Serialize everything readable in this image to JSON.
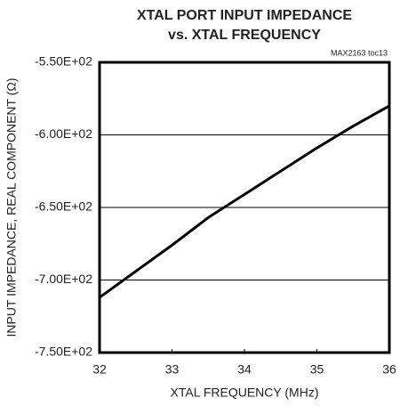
{
  "chart_data": {
    "type": "line",
    "title": [
      "XTAL PORT INPUT IMPEDANCE",
      "vs. XTAL FREQUENCY"
    ],
    "annotation": "MAX2163 toc13",
    "xlabel": "XTAL FREQUENCY (MHz)",
    "ylabel": "INPUT IMPEDANCE, REAL COMPONENT (Ω)",
    "x": [
      32,
      32.5,
      33,
      33.5,
      34,
      34.5,
      35,
      35.5,
      36
    ],
    "series": [
      {
        "color": "#000000",
        "values": [
          -712,
          -694,
          -676,
          -657,
          -641,
          -625,
          -609,
          -594,
          -580
        ]
      }
    ],
    "xlim": [
      32,
      36
    ],
    "xticks": [
      32,
      33,
      34,
      35,
      36
    ],
    "ylim": [
      -750,
      -550
    ],
    "yticks": [
      {
        "value": -750,
        "label": "-7.50E+02"
      },
      {
        "value": -700,
        "label": "-7.00E+02"
      },
      {
        "value": -650,
        "label": "-6.50E+02"
      },
      {
        "value": -600,
        "label": "-6.00E+02"
      },
      {
        "value": -550,
        "label": "-5.50E+02"
      }
    ],
    "grid": true
  }
}
